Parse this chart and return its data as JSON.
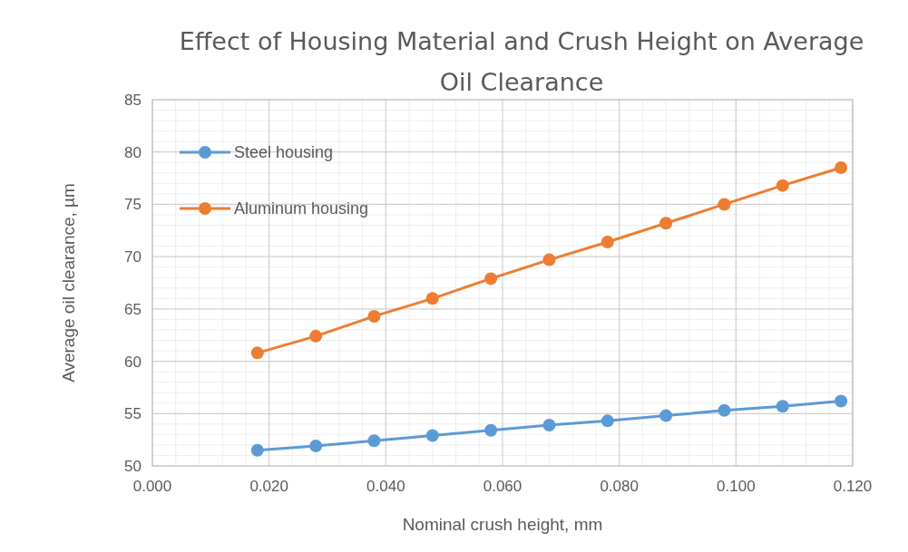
{
  "chart_data": {
    "type": "line",
    "title": "Effect of Housing Material and Crush Height on Average Oil Clearance",
    "xlabel": "Nominal crush height, mm",
    "ylabel": "Average oil clearance, µm",
    "x": [
      0.018,
      0.028,
      0.038,
      0.048,
      0.058,
      0.068,
      0.078,
      0.088,
      0.098,
      0.108,
      0.118
    ],
    "series": [
      {
        "name": "Steel housing",
        "color": "#5b9bd5",
        "values": [
          51.5,
          51.9,
          52.4,
          52.9,
          53.4,
          53.9,
          54.3,
          54.8,
          55.3,
          55.7,
          56.2
        ]
      },
      {
        "name": "Aluminum housing",
        "color": "#ed7d31",
        "values": [
          60.8,
          62.4,
          64.3,
          66.0,
          67.9,
          69.7,
          71.4,
          73.2,
          75.0,
          76.8,
          78.5
        ]
      }
    ],
    "xlim": [
      0,
      0.12
    ],
    "xticks": [
      {
        "value": 0,
        "label": "0.000"
      },
      {
        "value": 0.02,
        "label": "0.020"
      },
      {
        "value": 0.04,
        "label": "0.040"
      },
      {
        "value": 0.06,
        "label": "0.060"
      },
      {
        "value": 0.08,
        "label": "0.080"
      },
      {
        "value": 0.1,
        "label": "0.100"
      },
      {
        "value": 0.12,
        "label": "0.120"
      }
    ],
    "ylim": [
      50,
      85
    ],
    "yticks": [
      50,
      55,
      60,
      65,
      70,
      75,
      80,
      85
    ],
    "grid": true,
    "legend": "top left",
    "marker": "circle",
    "line_style": "solid"
  }
}
